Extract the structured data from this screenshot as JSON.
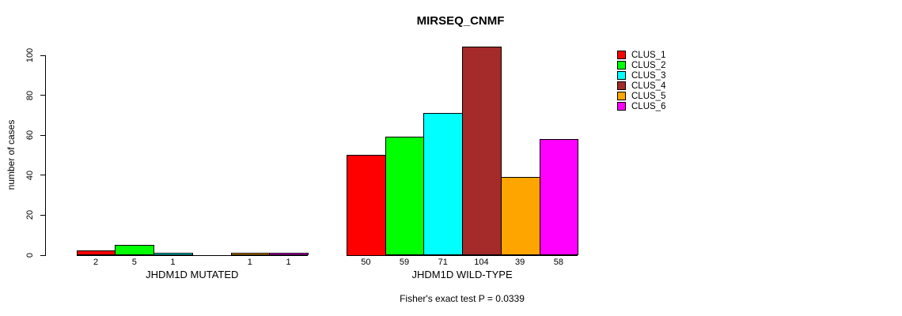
{
  "chart_data": {
    "type": "bar",
    "title": "MIRSEQ_CNMF",
    "ylabel": "number of cases",
    "xlabel": "",
    "ylim": [
      0,
      104
    ],
    "yticks": [
      0,
      20,
      40,
      60,
      80,
      100
    ],
    "grid": false,
    "legend_position": "right",
    "series": [
      {
        "name": "CLUS_1",
        "color": "#FF0000",
        "values": [
          2,
          50
        ]
      },
      {
        "name": "CLUS_2",
        "color": "#00FF00",
        "values": [
          5,
          59
        ]
      },
      {
        "name": "CLUS_3",
        "color": "#00FFFF",
        "values": [
          1,
          71
        ]
      },
      {
        "name": "CLUS_4",
        "color": "#A52A2A",
        "values": [
          0,
          104
        ]
      },
      {
        "name": "CLUS_5",
        "color": "#FFA500",
        "values": [
          1,
          39
        ]
      },
      {
        "name": "CLUS_6",
        "color": "#FF00FF",
        "values": [
          1,
          58
        ]
      }
    ],
    "groups": [
      {
        "label": "JHDM1D MUTATED",
        "values": [
          2,
          5,
          1,
          0,
          1,
          1
        ],
        "value_labels": [
          "2",
          "5",
          "1",
          "",
          "1",
          "1"
        ]
      },
      {
        "label": "JHDM1D WILD-TYPE",
        "values": [
          50,
          59,
          71,
          104,
          39,
          58
        ],
        "value_labels": [
          "50",
          "59",
          "71",
          "104",
          "39",
          "58"
        ]
      }
    ],
    "legend": [
      {
        "label": "CLUS_1",
        "color": "#FF0000"
      },
      {
        "label": "CLUS_2",
        "color": "#00FF00"
      },
      {
        "label": "CLUS_3",
        "color": "#00FFFF"
      },
      {
        "label": "CLUS_4",
        "color": "#A52A2A"
      },
      {
        "label": "CLUS_5",
        "color": "#FFA500"
      },
      {
        "label": "CLUS_6",
        "color": "#FF00FF"
      }
    ],
    "annotation": "Fisher's exact test P = 0.0339"
  }
}
